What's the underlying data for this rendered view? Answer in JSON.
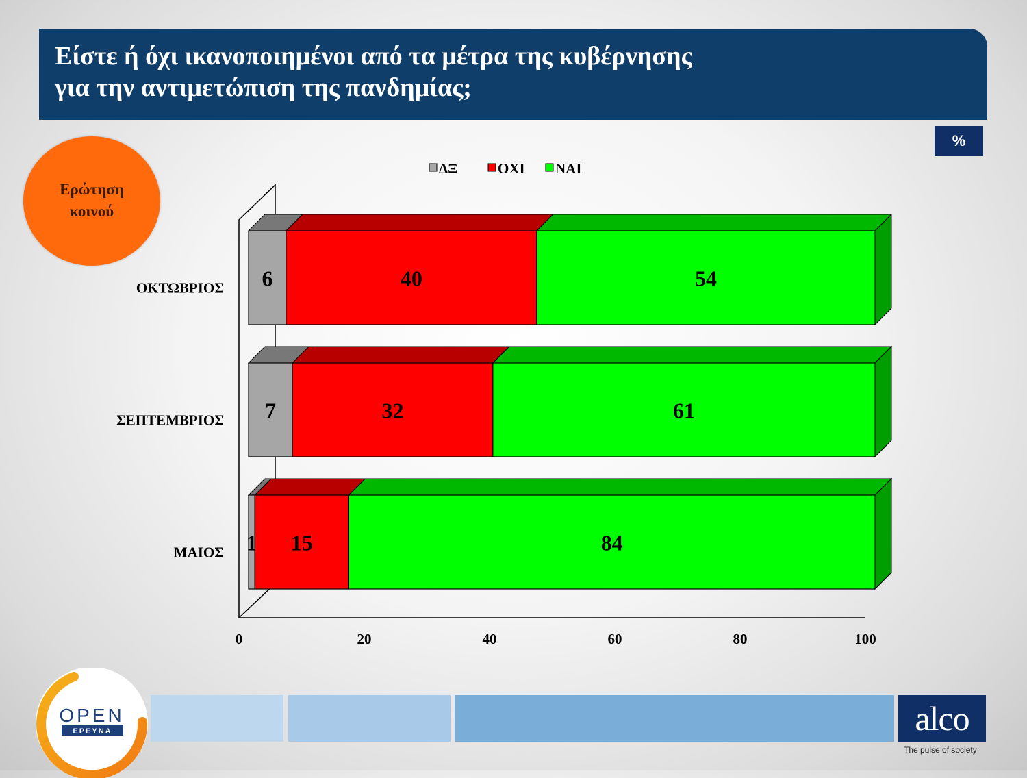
{
  "header": {
    "title_line1": "Είστε ή όχι ικανοποιημένοι από τα μέτρα της κυβέρνησης",
    "title_line2": "για την αντιμετώπιση της πανδημίας;",
    "unit_badge": "%"
  },
  "question_badge": {
    "line1": "Ερώτηση",
    "line2": "κοινού"
  },
  "chart_data": {
    "type": "bar",
    "orientation": "horizontal",
    "stacked": true,
    "style": "3d",
    "categories": [
      "ΟΚΤΩΒΡΙΟΣ",
      "ΣΕΠΤΕΜΒΡΙΟΣ",
      "ΜΑΙΟΣ"
    ],
    "series": [
      {
        "name": "ΔΞ",
        "values": [
          6,
          7,
          1
        ],
        "color": "#a6a6a6"
      },
      {
        "name": "ΟΧΙ",
        "values": [
          40,
          32,
          15
        ],
        "color": "#ff0000"
      },
      {
        "name": "ΝΑΙ",
        "values": [
          54,
          61,
          84
        ],
        "color": "#00ff00"
      }
    ],
    "xlim": [
      0,
      100
    ],
    "xticks": [
      "0",
      "20",
      "40",
      "60",
      "80",
      "100"
    ],
    "legend_position": "top",
    "grid": false
  },
  "footer": {
    "open_logo_line1": "OPEN",
    "open_logo_line2": "ΕΡΕΥΝΑ",
    "alco_logo": "alco",
    "alco_tagline": "The pulse of society"
  }
}
